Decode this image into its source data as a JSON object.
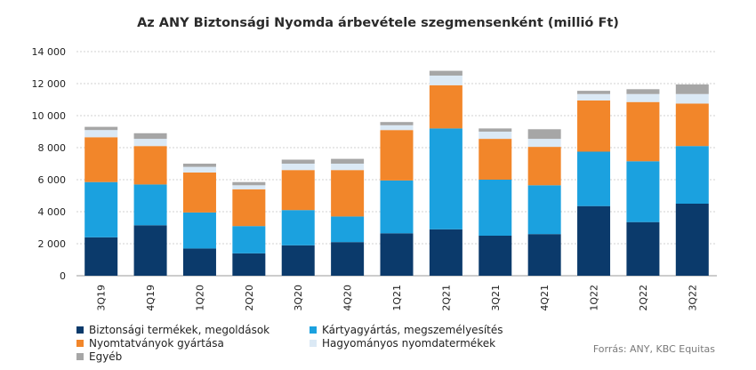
{
  "chart_data": {
    "type": "bar",
    "stacked": true,
    "title": "Az ANY Biztonsági Nyomda árbevétele szegmensenként (millió Ft)",
    "categories": [
      "3Q19",
      "4Q19",
      "1Q20",
      "2Q20",
      "3Q20",
      "4Q20",
      "1Q21",
      "2Q21",
      "3Q21",
      "4Q21",
      "1Q22",
      "2Q22",
      "3Q22"
    ],
    "ylim": [
      0,
      14000
    ],
    "yticks": [
      0,
      2000,
      4000,
      6000,
      8000,
      10000,
      12000,
      14000
    ],
    "ytick_labels": [
      "0",
      "2 000",
      "4 000",
      "6 000",
      "8 000",
      "10 000",
      "12 000",
      "14 000"
    ],
    "grid": true,
    "legend_position": "bottom",
    "series": [
      {
        "name": "Biztonsági termékek, megoldások",
        "color": "#0b3a6b",
        "values": [
          2400,
          3150,
          1700,
          1400,
          1900,
          2100,
          2650,
          2900,
          2500,
          2600,
          4350,
          3350,
          4500
        ]
      },
      {
        "name": "Kártyagyártás, megszemélyesítés",
        "color": "#1ba1df",
        "values": [
          3450,
          2550,
          2250,
          1700,
          2200,
          1600,
          3300,
          6300,
          3500,
          3050,
          3400,
          3800,
          3600
        ]
      },
      {
        "name": "Nyomtatványok gyártása",
        "color": "#f2862a",
        "values": [
          2800,
          2400,
          2500,
          2300,
          2500,
          2900,
          3150,
          2700,
          2550,
          2400,
          3200,
          3700,
          2650
        ]
      },
      {
        "name": "Hagyományos nyomdatermékek",
        "color": "#dbe9f5",
        "values": [
          450,
          450,
          350,
          250,
          400,
          400,
          300,
          600,
          450,
          500,
          400,
          500,
          600
        ]
      },
      {
        "name": "Egyéb",
        "color": "#a6a6a6",
        "values": [
          200,
          350,
          200,
          200,
          250,
          300,
          200,
          300,
          200,
          600,
          200,
          300,
          600
        ]
      }
    ]
  },
  "source": "Forrás: ANY, KBC Equitas"
}
